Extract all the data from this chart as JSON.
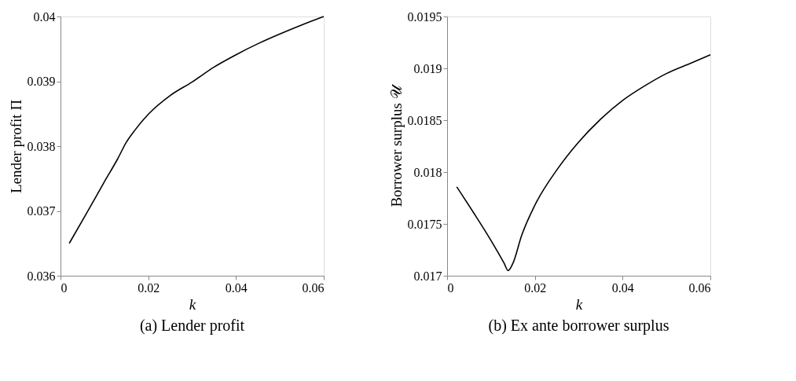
{
  "chart_data": [
    {
      "type": "line",
      "title": "(a) Lender profit",
      "xlabel": "k",
      "ylabel": "Lender profit Π",
      "xlim": [
        0,
        0.06
      ],
      "ylim": [
        0.036,
        0.04
      ],
      "xticks": [
        0,
        0.02,
        0.04,
        0.06
      ],
      "yticks": [
        0.036,
        0.037,
        0.038,
        0.039,
        0.04
      ],
      "grid": false,
      "series": [
        {
          "color": "#000000",
          "x": [
            0.002,
            0.006,
            0.01,
            0.013,
            0.015,
            0.017,
            0.02,
            0.025,
            0.03,
            0.035,
            0.04,
            0.045,
            0.05,
            0.055,
            0.06
          ],
          "values": [
            0.0365,
            0.03697,
            0.03745,
            0.0378,
            0.03806,
            0.03825,
            0.03849,
            0.03878,
            0.03899,
            0.03922,
            0.03941,
            0.03958,
            0.03973,
            0.03987,
            0.04
          ]
        }
      ]
    },
    {
      "type": "line",
      "title": "(b) Ex ante borrower surplus",
      "xlabel": "k",
      "ylabel": "Borrower surplus 𝒰",
      "xlim": [
        0,
        0.06
      ],
      "ylim": [
        0.017,
        0.0195
      ],
      "xticks": [
        0,
        0.02,
        0.04,
        0.06
      ],
      "yticks": [
        0.017,
        0.0175,
        0.018,
        0.0185,
        0.019,
        0.0195
      ],
      "grid": false,
      "series": [
        {
          "color": "#000000",
          "x": [
            0.0022,
            0.006,
            0.01,
            0.013,
            0.0139,
            0.015,
            0.017,
            0.02,
            0.025,
            0.03,
            0.035,
            0.04,
            0.045,
            0.05,
            0.055,
            0.06
          ],
          "values": [
            0.017857,
            0.01761,
            0.01734,
            0.01712,
            0.01705,
            0.01712,
            0.01739,
            0.01768,
            0.01802,
            0.01829,
            0.01851,
            0.01869,
            0.01883,
            0.01895,
            0.01904,
            0.01913
          ]
        }
      ]
    }
  ]
}
